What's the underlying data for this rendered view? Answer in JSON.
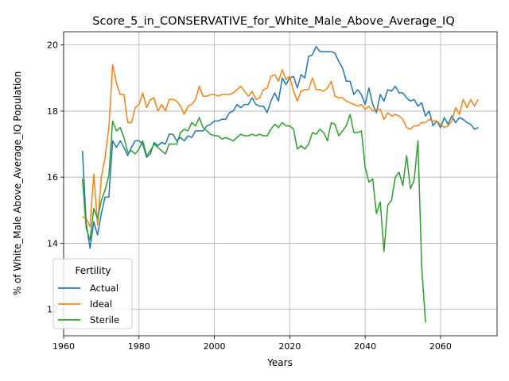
{
  "chart_data": {
    "type": "line",
    "title": "Score_5_in_CONSERVATIVE_for_White_Male_Above_Average_IQ",
    "xlabel": "Years",
    "ylabel": "% of White_Male Above_Average_IQ Population",
    "xlim": [
      1960,
      2075
    ],
    "ylim": [
      11.2,
      20.4
    ],
    "xticks": [
      1960,
      1980,
      2000,
      2020,
      2040,
      2060
    ],
    "yticks": [
      12,
      14,
      16,
      18,
      20
    ],
    "grid": true,
    "legend": {
      "title": "Fertility",
      "placement": "lower-left"
    },
    "series": [
      {
        "name": "Actual",
        "color": "#1f77b4",
        "x": [
          1965,
          1966,
          1967,
          1968,
          1969,
          1970,
          1971,
          1972,
          1973,
          1974,
          1975,
          1976,
          1977,
          1978,
          1979,
          1980,
          1981,
          1982,
          1983,
          1984,
          1985,
          1986,
          1987,
          1988,
          1989,
          1990,
          1991,
          1992,
          1993,
          1994,
          1995,
          1996,
          1997,
          1998,
          1999,
          2000,
          2001,
          2002,
          2003,
          2004,
          2005,
          2006,
          2007,
          2008,
          2009,
          2010,
          2011,
          2012,
          2013,
          2014,
          2015,
          2016,
          2017,
          2018,
          2019,
          2020,
          2021,
          2022,
          2023,
          2024,
          2025,
          2026,
          2027,
          2028,
          2029,
          2030,
          2031,
          2032,
          2033,
          2034,
          2035,
          2036,
          2037,
          2038,
          2039,
          2040,
          2041,
          2042,
          2043,
          2044,
          2045,
          2046,
          2047,
          2048,
          2049,
          2050,
          2051,
          2052,
          2053,
          2054,
          2055,
          2056,
          2057,
          2058,
          2059,
          2060,
          2061,
          2062,
          2063,
          2064,
          2065,
          2066,
          2067,
          2068,
          2069,
          2070
        ],
        "values": [
          16.8,
          14.6,
          13.85,
          14.65,
          14.25,
          14.9,
          15.4,
          15.4,
          17.1,
          16.9,
          17.1,
          16.9,
          16.65,
          16.9,
          17.1,
          17.1,
          17.0,
          16.6,
          16.7,
          17.05,
          16.95,
          17.05,
          17.0,
          17.3,
          17.3,
          17.1,
          17.2,
          17.1,
          17.25,
          17.2,
          17.4,
          17.4,
          17.4,
          17.55,
          17.6,
          17.7,
          17.7,
          17.75,
          17.75,
          17.95,
          18.0,
          18.2,
          18.1,
          18.2,
          18.2,
          18.4,
          18.2,
          18.15,
          18.15,
          17.95,
          18.3,
          18.55,
          18.3,
          19.0,
          18.8,
          19.0,
          19.05,
          18.7,
          19.1,
          19.0,
          19.65,
          19.7,
          19.95,
          19.8,
          19.8,
          19.8,
          19.8,
          19.75,
          19.5,
          19.3,
          18.9,
          18.9,
          18.5,
          18.65,
          18.5,
          18.2,
          18.7,
          18.2,
          17.95,
          18.5,
          18.3,
          18.65,
          18.6,
          18.75,
          18.55,
          18.55,
          18.4,
          18.3,
          18.35,
          18.15,
          18.25,
          17.85,
          18.0,
          17.55,
          17.7,
          17.5,
          17.8,
          17.6,
          17.85,
          17.65,
          17.8,
          17.75,
          17.65,
          17.6,
          17.45,
          17.5
        ]
      },
      {
        "name": "Ideal",
        "color": "#ff7f0e",
        "x": [
          1965,
          1966,
          1967,
          1968,
          1969,
          1970,
          1971,
          1972,
          1973,
          1974,
          1975,
          1976,
          1977,
          1978,
          1979,
          1980,
          1981,
          1982,
          1983,
          1984,
          1985,
          1986,
          1987,
          1988,
          1989,
          1990,
          1991,
          1992,
          1993,
          1994,
          1995,
          1996,
          1997,
          1998,
          1999,
          2000,
          2001,
          2002,
          2003,
          2004,
          2005,
          2006,
          2007,
          2008,
          2009,
          2010,
          2011,
          2012,
          2013,
          2014,
          2015,
          2016,
          2017,
          2018,
          2019,
          2020,
          2021,
          2022,
          2023,
          2024,
          2025,
          2026,
          2027,
          2028,
          2029,
          2030,
          2031,
          2032,
          2033,
          2034,
          2035,
          2036,
          2037,
          2038,
          2039,
          2040,
          2041,
          2042,
          2043,
          2044,
          2045,
          2046,
          2047,
          2048,
          2049,
          2050,
          2051,
          2052,
          2053,
          2054,
          2055,
          2056,
          2057,
          2058,
          2059,
          2060,
          2061,
          2062,
          2063,
          2064,
          2065,
          2066,
          2067,
          2068,
          2069,
          2070
        ],
        "values": [
          14.8,
          14.75,
          14.5,
          16.1,
          14.55,
          16.0,
          16.6,
          17.5,
          19.4,
          18.85,
          18.5,
          18.5,
          17.65,
          17.65,
          18.1,
          18.2,
          18.55,
          18.1,
          18.35,
          18.4,
          18.0,
          18.2,
          18.0,
          18.35,
          18.35,
          18.3,
          18.15,
          17.9,
          18.15,
          18.2,
          18.35,
          18.75,
          18.45,
          18.45,
          18.5,
          18.5,
          18.45,
          18.5,
          18.5,
          18.5,
          18.55,
          18.65,
          18.75,
          18.6,
          18.45,
          18.6,
          18.35,
          18.4,
          18.65,
          18.7,
          19.05,
          19.1,
          18.9,
          19.25,
          18.95,
          19.05,
          18.6,
          18.3,
          18.6,
          18.65,
          18.65,
          19.0,
          18.65,
          18.65,
          18.6,
          18.7,
          18.9,
          18.45,
          18.4,
          18.4,
          18.3,
          18.25,
          18.2,
          18.15,
          18.2,
          18.05,
          18.15,
          18.0,
          18.05,
          18.05,
          17.75,
          17.95,
          17.85,
          17.9,
          17.85,
          17.75,
          17.5,
          17.45,
          17.55,
          17.55,
          17.65,
          17.65,
          17.75,
          17.7,
          17.7,
          17.6,
          17.5,
          17.55,
          17.7,
          18.1,
          17.9,
          18.35,
          18.1,
          18.35,
          18.15,
          18.35
        ]
      },
      {
        "name": "Sterile",
        "color": "#2ca02c",
        "x": [
          1965,
          1966,
          1967,
          1968,
          1969,
          1970,
          1971,
          1972,
          1973,
          1974,
          1975,
          1976,
          1977,
          1978,
          1979,
          1980,
          1981,
          1982,
          1983,
          1984,
          1985,
          1986,
          1987,
          1988,
          1989,
          1990,
          1991,
          1992,
          1993,
          1994,
          1995,
          1996,
          1997,
          1998,
          1999,
          2000,
          2001,
          2002,
          2003,
          2004,
          2005,
          2006,
          2007,
          2008,
          2009,
          2010,
          2011,
          2012,
          2013,
          2014,
          2015,
          2016,
          2017,
          2018,
          2019,
          2020,
          2021,
          2022,
          2023,
          2024,
          2025,
          2026,
          2027,
          2028,
          2029,
          2030,
          2031,
          2032,
          2033,
          2034,
          2035,
          2036,
          2037,
          2038,
          2039,
          2040,
          2041,
          2042,
          2043,
          2044,
          2045,
          2046,
          2047,
          2048,
          2049,
          2050,
          2051,
          2052,
          2053,
          2054,
          2055,
          2056
        ],
        "values": [
          15.95,
          14.45,
          14.1,
          15.05,
          14.75,
          15.3,
          15.6,
          16.05,
          17.7,
          17.4,
          17.5,
          17.2,
          16.75,
          16.8,
          16.7,
          16.85,
          17.1,
          16.65,
          16.8,
          17.0,
          16.9,
          16.8,
          16.7,
          17.0,
          17.0,
          17.0,
          17.35,
          17.45,
          17.4,
          17.65,
          17.55,
          17.8,
          17.5,
          17.4,
          17.3,
          17.25,
          17.25,
          17.15,
          17.2,
          17.15,
          17.1,
          17.2,
          17.3,
          17.25,
          17.25,
          17.3,
          17.25,
          17.3,
          17.25,
          17.25,
          17.45,
          17.6,
          17.5,
          17.65,
          17.55,
          17.55,
          17.45,
          16.85,
          16.95,
          16.85,
          17.0,
          17.35,
          17.3,
          17.45,
          17.35,
          17.1,
          17.65,
          17.6,
          17.25,
          17.4,
          17.55,
          17.9,
          17.35,
          17.35,
          17.4,
          16.3,
          15.85,
          15.95,
          14.9,
          15.25,
          13.75,
          15.15,
          15.3,
          16.0,
          16.15,
          15.75,
          16.65,
          15.65,
          15.9,
          17.1,
          13.3,
          11.6
        ]
      }
    ]
  }
}
